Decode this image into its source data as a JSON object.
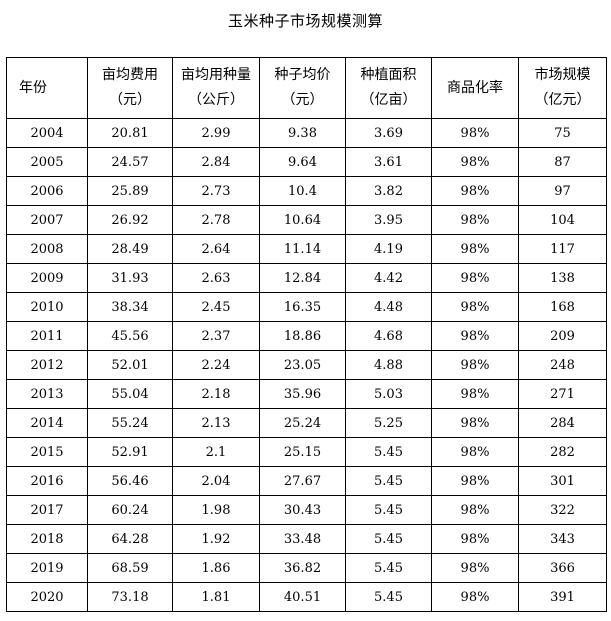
{
  "title": "玉米种子市场规模测算",
  "table": {
    "headers": [
      {
        "line1": "年份",
        "line2": ""
      },
      {
        "line1": "亩均费用",
        "line2": "（元）"
      },
      {
        "line1": "亩均用种量",
        "line2": "（公斤）"
      },
      {
        "line1": "种子均价",
        "line2": "（元）"
      },
      {
        "line1": "种植面积",
        "line2": "（亿亩）"
      },
      {
        "line1": "商品化率",
        "line2": ""
      },
      {
        "line1": "市场规模",
        "line2": "（亿元）"
      }
    ],
    "rows": [
      [
        "2004",
        "20.81",
        "2.99",
        "9.38",
        "3.69",
        "98%",
        "75"
      ],
      [
        "2005",
        "24.57",
        "2.84",
        "9.64",
        "3.61",
        "98%",
        "87"
      ],
      [
        "2006",
        "25.89",
        "2.73",
        "10.4",
        "3.82",
        "98%",
        "97"
      ],
      [
        "2007",
        "26.92",
        "2.78",
        "10.64",
        "3.95",
        "98%",
        "104"
      ],
      [
        "2008",
        "28.49",
        "2.64",
        "11.14",
        "4.19",
        "98%",
        "117"
      ],
      [
        "2009",
        "31.93",
        "2.63",
        "12.84",
        "4.42",
        "98%",
        "138"
      ],
      [
        "2010",
        "38.34",
        "2.45",
        "16.35",
        "4.48",
        "98%",
        "168"
      ],
      [
        "2011",
        "45.56",
        "2.37",
        "18.86",
        "4.68",
        "98%",
        "209"
      ],
      [
        "2012",
        "52.01",
        "2.24",
        "23.05",
        "4.88",
        "98%",
        "248"
      ],
      [
        "2013",
        "55.04",
        "2.18",
        "35.96",
        "5.03",
        "98%",
        "271"
      ],
      [
        "2014",
        "55.24",
        "2.13",
        "25.24",
        "5.25",
        "98%",
        "284"
      ],
      [
        "2015",
        "52.91",
        "2.1",
        "25.15",
        "5.45",
        "98%",
        "282"
      ],
      [
        "2016",
        "56.46",
        "2.04",
        "27.67",
        "5.45",
        "98%",
        "301"
      ],
      [
        "2017",
        "60.24",
        "1.98",
        "30.43",
        "5.45",
        "98%",
        "322"
      ],
      [
        "2018",
        "64.28",
        "1.92",
        "33.48",
        "5.45",
        "98%",
        "343"
      ],
      [
        "2019",
        "68.59",
        "1.86",
        "36.82",
        "5.45",
        "98%",
        "366"
      ],
      [
        "2020",
        "73.18",
        "1.81",
        "40.51",
        "5.45",
        "98%",
        "391"
      ]
    ]
  }
}
